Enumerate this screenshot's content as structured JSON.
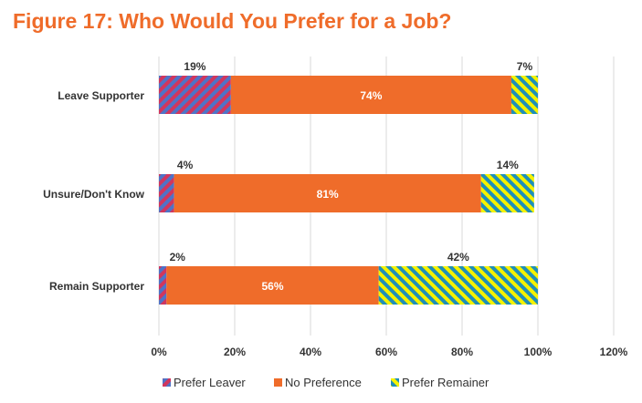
{
  "title": "Figure 17: Who Would You Prefer for a Job?",
  "colors": {
    "title": "#ef6c2a",
    "prefer_leaver_stripe_a": "#d1365e",
    "prefer_leaver_stripe_b": "#4f73c7",
    "no_preference": "#ef6c2a",
    "prefer_remainer_stripe_a": "#f5f200",
    "prefer_remainer_stripe_b": "#1f8fb8",
    "gridline": "#d9d9d9"
  },
  "chart_data": {
    "type": "bar",
    "orientation": "horizontal",
    "stacked": true,
    "categories": [
      "Leave Supporter",
      "Unsure/Don't Know",
      "Remain Supporter"
    ],
    "series": [
      {
        "name": "Prefer Leaver",
        "values": [
          19,
          4,
          2
        ],
        "labels": [
          "19%",
          "4%",
          "2%"
        ],
        "pattern": "diagonal-stripes-red-blue"
      },
      {
        "name": "No Preference",
        "values": [
          74,
          81,
          56
        ],
        "labels": [
          "74%",
          "81%",
          "56%"
        ],
        "pattern": "solid-orange"
      },
      {
        "name": "Prefer Remainer",
        "values": [
          7,
          14,
          42
        ],
        "labels": [
          "7%",
          "14%",
          "42%"
        ],
        "pattern": "diagonal-stripes-yellow-blue"
      }
    ],
    "xlim": [
      0,
      120
    ],
    "x_ticks": [
      0,
      20,
      40,
      60,
      80,
      100,
      120
    ],
    "x_tick_labels": [
      "0%",
      "20%",
      "40%",
      "60%",
      "80%",
      "100%",
      "120%"
    ],
    "grid": "vertical",
    "legend_position": "bottom"
  }
}
